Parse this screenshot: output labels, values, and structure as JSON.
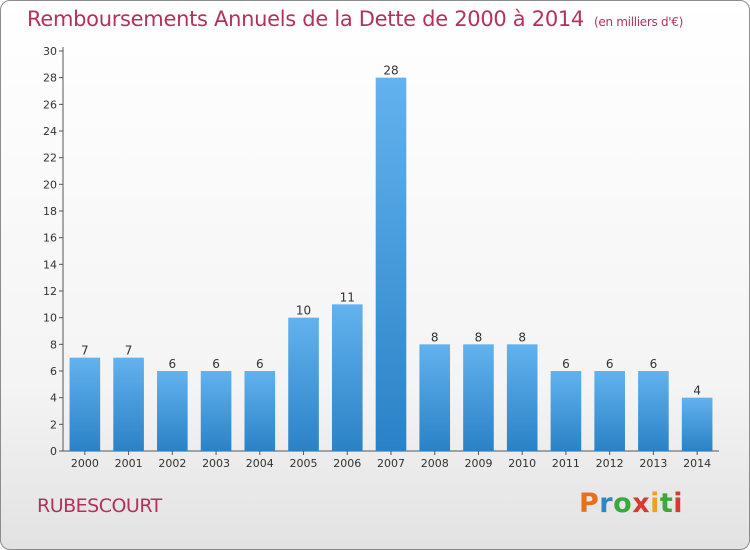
{
  "title": "Remboursements Annuels de la Dette de 2000 à 2014",
  "unit": "(en milliers d'€)",
  "town": "RUBESCOURT",
  "logo": "Proxiti",
  "colors": {
    "title": "#b5315c",
    "bar_light": "#62b2ee",
    "bar_dark": "#2a82c6",
    "logo_letters": [
      "#e8701a",
      "#2e86c8",
      "#3aa83a",
      "#d83a2e",
      "#f0a020",
      "#3aa83a",
      "#d83a2e"
    ]
  },
  "chart_data": {
    "type": "bar",
    "categories": [
      "2000",
      "2001",
      "2002",
      "2003",
      "2004",
      "2005",
      "2006",
      "2007",
      "2008",
      "2009",
      "2010",
      "2011",
      "2012",
      "2013",
      "2014"
    ],
    "values": [
      7,
      7,
      6,
      6,
      6,
      10,
      11,
      28,
      8,
      8,
      8,
      6,
      6,
      6,
      4
    ],
    "title": "Remboursements Annuels de la Dette de 2000 à 2014",
    "ylim": [
      0,
      30
    ],
    "ytick_step": 2,
    "grid": false,
    "data_labels": true
  }
}
